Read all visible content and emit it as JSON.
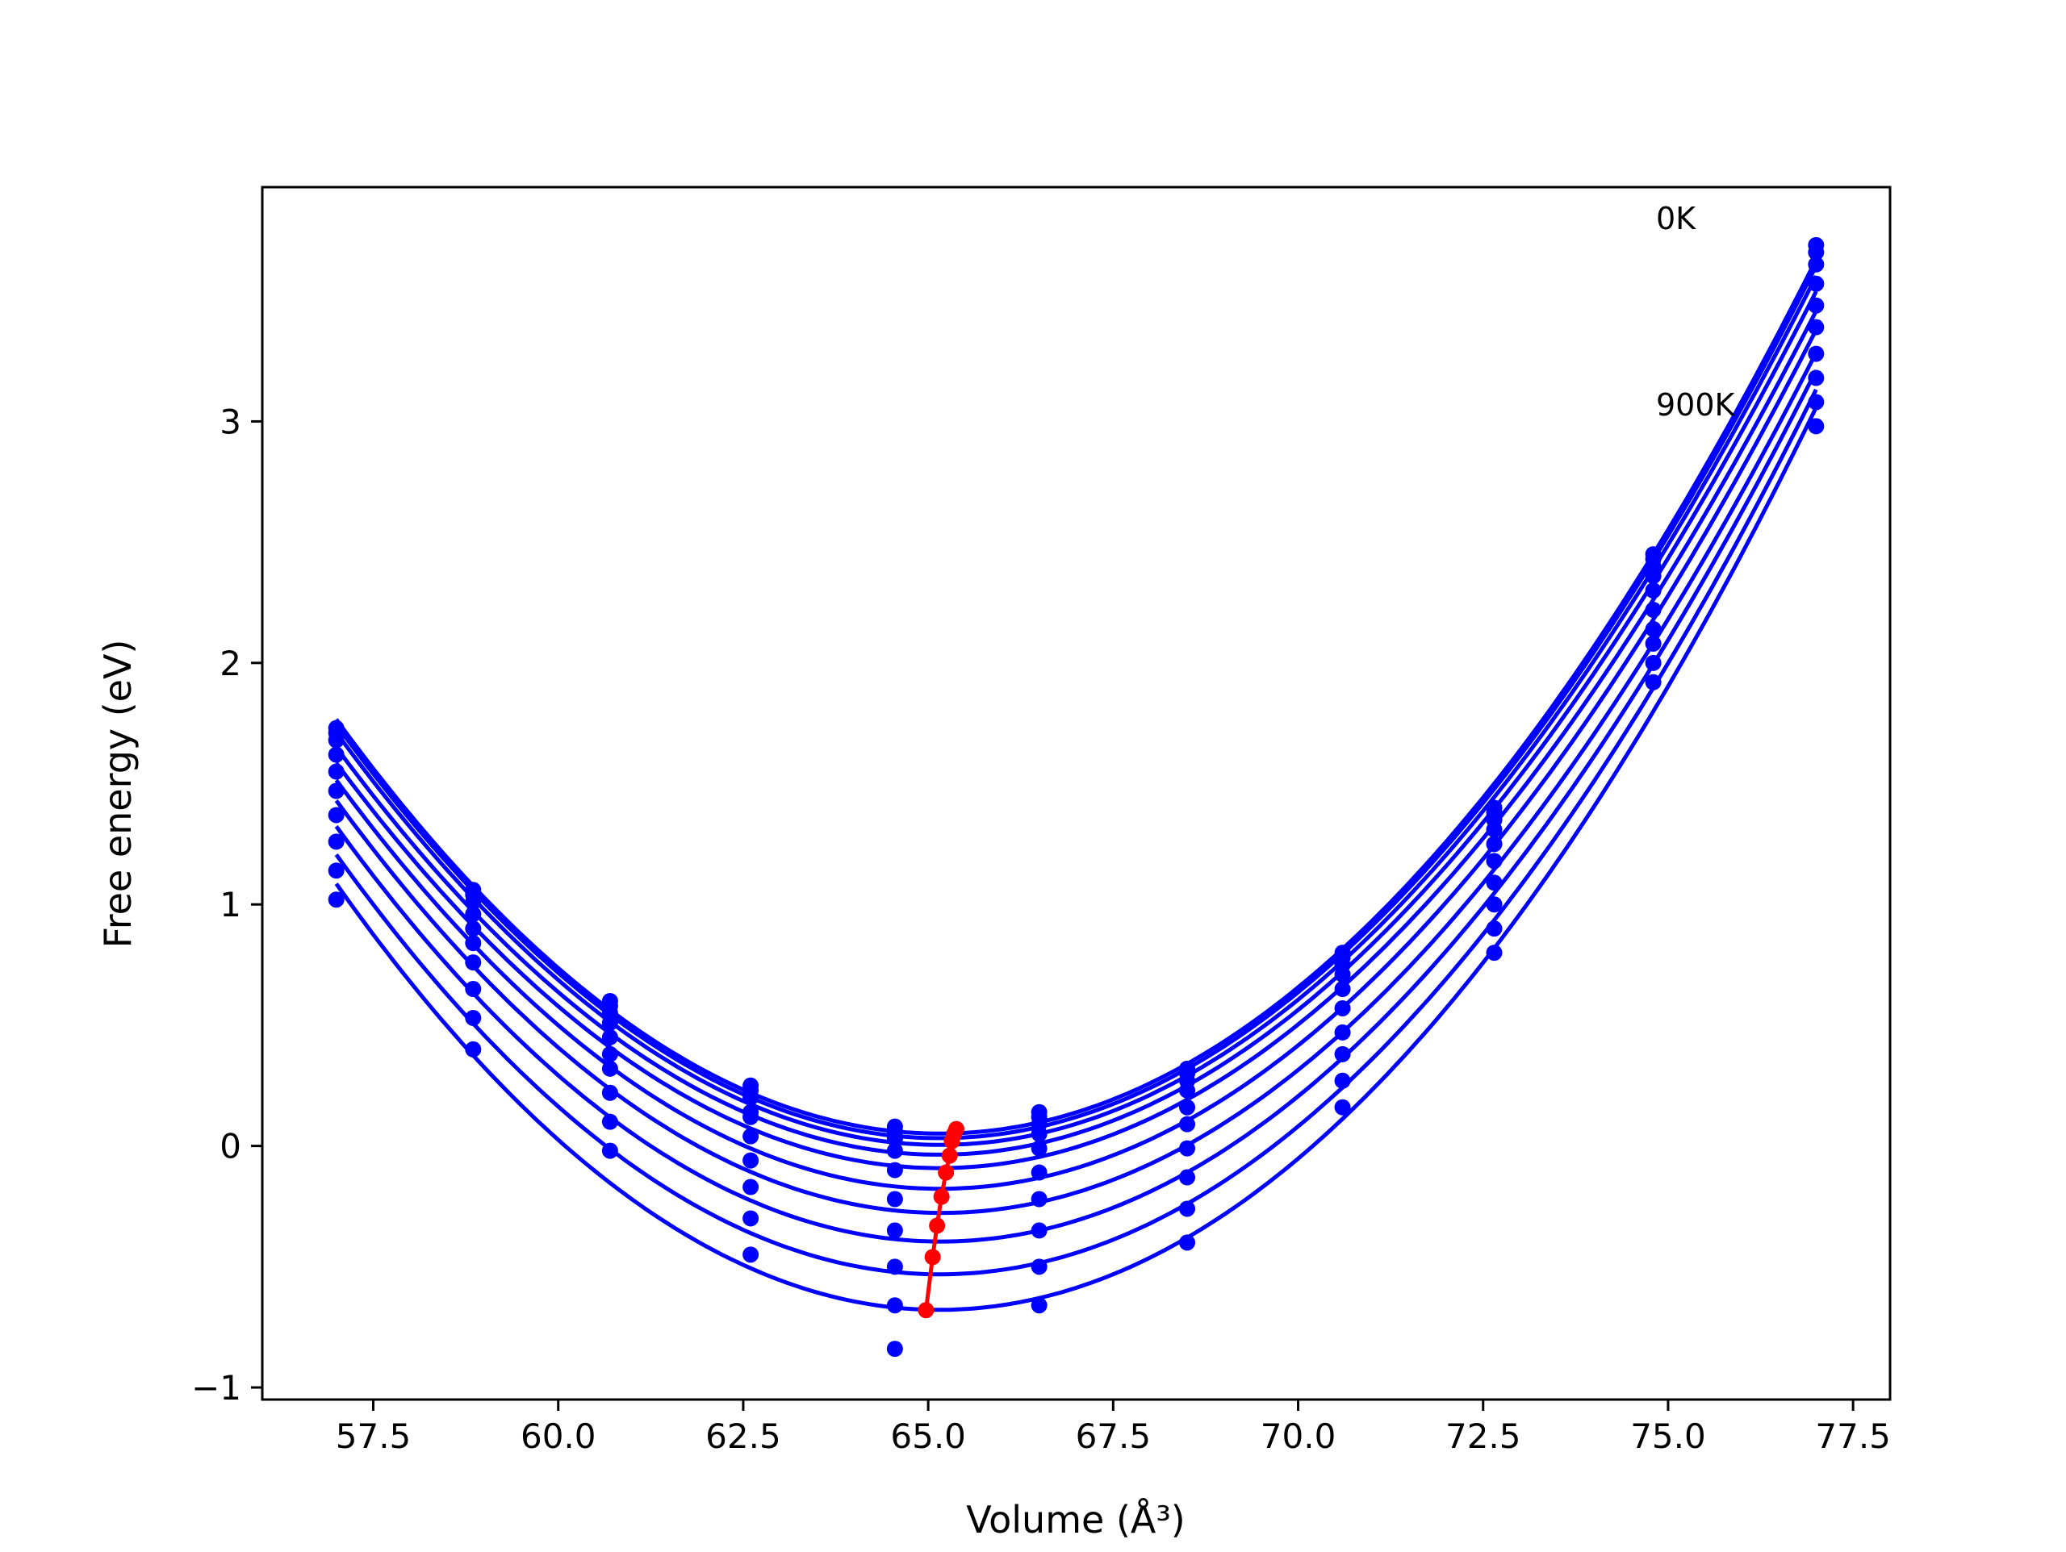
{
  "chart_data": {
    "type": "scatter",
    "title": "",
    "xlabel": "Volume (Å³)",
    "ylabel": "Free energy (eV)",
    "xlim": [
      56.0,
      78.0
    ],
    "ylim": [
      -1.05,
      3.97
    ],
    "xticks": [
      "57.5",
      "60.0",
      "62.5",
      "65.0",
      "67.5",
      "70.0",
      "72.5",
      "75.0",
      "77.5"
    ],
    "yticks": [
      "−1",
      "0",
      "1",
      "2",
      "3"
    ],
    "xtick_values": [
      57.5,
      60.0,
      62.5,
      65.0,
      67.5,
      70.0,
      72.5,
      75.0,
      77.5
    ],
    "ytick_values": [
      -1,
      0,
      1,
      2,
      3
    ],
    "grid": false,
    "x": [
      57.0,
      58.85,
      60.7,
      62.6,
      64.55,
      66.5,
      68.5,
      70.6,
      72.65,
      74.8,
      77.0
    ],
    "series": [
      {
        "values": [
          1.73,
          1.06,
          0.6,
          0.25,
          0.08,
          0.14,
          0.32,
          0.8,
          1.4,
          2.45,
          3.73
        ],
        "color": "#0000ff"
      },
      {
        "values": [
          1.71,
          1.04,
          0.58,
          0.23,
          0.06,
          0.12,
          0.3,
          0.78,
          1.38,
          2.43,
          3.7
        ],
        "color": "#0000ff"
      },
      {
        "values": [
          1.68,
          1.01,
          0.55,
          0.2,
          0.03,
          0.09,
          0.27,
          0.75,
          1.35,
          2.4,
          3.65
        ],
        "color": "#0000ff"
      },
      {
        "values": [
          1.62,
          0.96,
          0.51,
          0.14,
          -0.02,
          0.05,
          0.23,
          0.71,
          1.31,
          2.36,
          3.57
        ],
        "color": "#0000ff"
      },
      {
        "values": [
          1.55,
          0.9,
          0.45,
          0.12,
          -0.1,
          -0.01,
          0.16,
          0.65,
          1.25,
          2.3,
          3.48
        ],
        "color": "#0000ff"
      },
      {
        "values": [
          1.47,
          0.84,
          0.38,
          0.04,
          -0.22,
          -0.11,
          0.09,
          0.57,
          1.18,
          2.22,
          3.39
        ],
        "color": "#0000ff"
      },
      {
        "values": [
          1.37,
          0.76,
          0.32,
          -0.06,
          -0.35,
          -0.22,
          -0.01,
          0.47,
          1.09,
          2.14,
          3.28
        ],
        "color": "#0000ff"
      },
      {
        "values": [
          1.26,
          0.65,
          0.22,
          -0.17,
          -0.5,
          -0.35,
          -0.13,
          0.38,
          1.0,
          2.08,
          3.18
        ],
        "color": "#0000ff"
      },
      {
        "values": [
          1.14,
          0.53,
          0.1,
          -0.3,
          -0.66,
          -0.5,
          -0.26,
          0.27,
          0.9,
          2.0,
          3.08
        ],
        "color": "#0000ff"
      },
      {
        "values": [
          1.02,
          0.4,
          -0.02,
          -0.45,
          -0.84,
          -0.66,
          -0.4,
          0.16,
          0.8,
          1.92,
          2.98
        ],
        "color": "#0000ff"
      }
    ],
    "minima_series": {
      "color": "#ff0000",
      "x": [
        65.38,
        65.35,
        65.32,
        65.29,
        65.24,
        65.18,
        65.12,
        65.06,
        64.97
      ],
      "y": [
        0.07,
        0.05,
        0.02,
        -0.04,
        -0.11,
        -0.21,
        -0.33,
        -0.46,
        -0.68
      ]
    },
    "annotations": [
      "0K",
      "900K"
    ]
  },
  "colors": {
    "fit": "#0000ff",
    "points": "#0000ff",
    "minima": "#ff0000"
  }
}
